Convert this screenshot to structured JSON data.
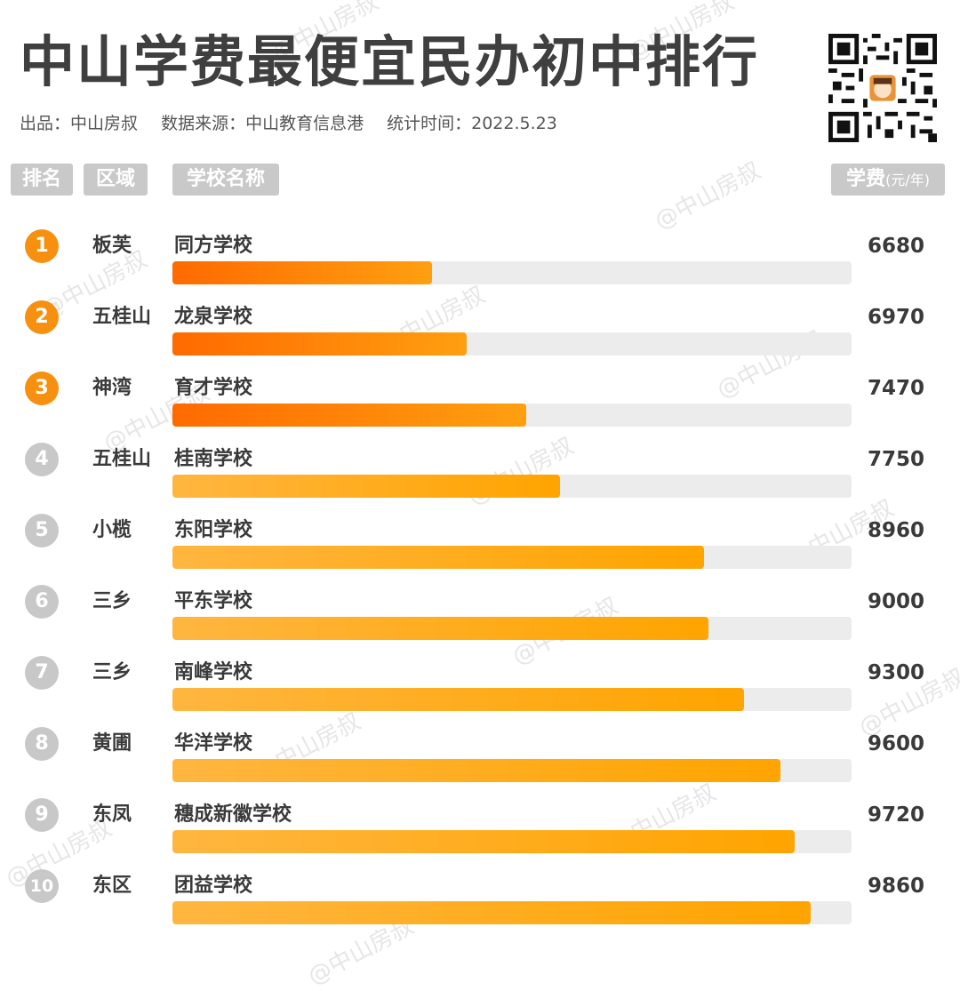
{
  "title": "中山学费最便宜民办初中排行",
  "subtitle": {
    "producer": "出品：中山房叔",
    "source": "数据来源：中山教育信息港",
    "date": "统计时间：2022.5.23"
  },
  "headers": {
    "rank": "排名",
    "region": "区域",
    "school": "学校名称",
    "fee": "学费",
    "fee_unit": "(元/年)"
  },
  "watermark": "@中山房叔",
  "colors": {
    "top3_badge": "#f7900f",
    "other_badge": "#c8c8c8",
    "top3_bar_start": "#ff6a00",
    "top3_bar_end": "#ff9f10",
    "bar_start": "#ffb640",
    "bar_end": "#ffa400",
    "track": "#ececec"
  },
  "chart_data": {
    "type": "bar",
    "orientation": "horizontal",
    "xlim": [
      0,
      10200
    ],
    "categories": [
      "同方学校",
      "龙泉学校",
      "育才学校",
      "桂南学校",
      "东阳学校",
      "平东学校",
      "南峰学校",
      "华洋学校",
      "穗成新徽学校",
      "团益学校"
    ],
    "values": [
      6680,
      6970,
      7470,
      7750,
      8960,
      9000,
      9300,
      9600,
      9720,
      9860
    ],
    "rows": [
      {
        "rank": "1",
        "region": "板芙",
        "school": "同方学校",
        "fee": 6680
      },
      {
        "rank": "2",
        "region": "五桂山",
        "school": "龙泉学校",
        "fee": 6970
      },
      {
        "rank": "3",
        "region": "神湾",
        "school": "育才学校",
        "fee": 7470
      },
      {
        "rank": "4",
        "region": "五桂山",
        "school": "桂南学校",
        "fee": 7750
      },
      {
        "rank": "5",
        "region": "小榄",
        "school": "东阳学校",
        "fee": 8960
      },
      {
        "rank": "6",
        "region": "三乡",
        "school": "平东学校",
        "fee": 9000
      },
      {
        "rank": "7",
        "region": "三乡",
        "school": "南峰学校",
        "fee": 9300
      },
      {
        "rank": "8",
        "region": "黄圃",
        "school": "华洋学校",
        "fee": 9600
      },
      {
        "rank": "9",
        "region": "东凤",
        "school": "穗成新徽学校",
        "fee": 9720
      },
      {
        "rank": "10",
        "region": "东区",
        "school": "团益学校",
        "fee": 9860
      }
    ]
  }
}
